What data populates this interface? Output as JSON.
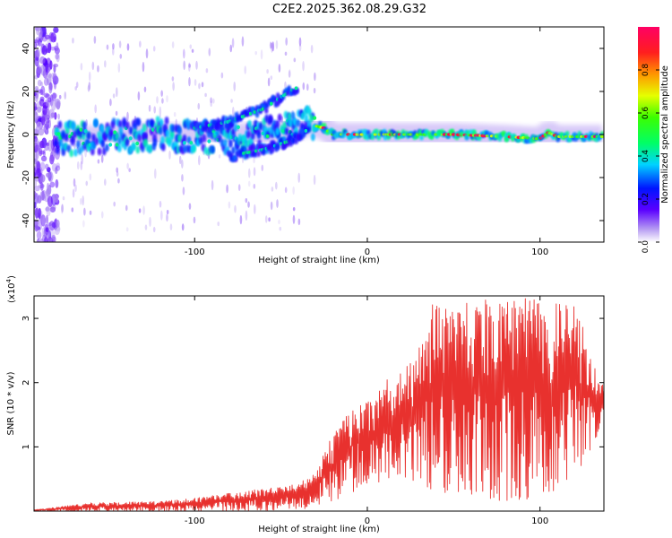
{
  "title": "C2E2.2025.362.08.29.G32",
  "colors": {
    "snr_line": "#e8312e",
    "axis": "#000000"
  },
  "chart_data": [
    {
      "type": "heatmap",
      "name": "spectrogram",
      "xlabel": "Height of straight line (km)",
      "ylabel": "Frequency (Hz)",
      "xlim": [
        -193,
        137
      ],
      "ylim": [
        -50,
        50
      ],
      "xticks": [
        -100,
        0,
        100
      ],
      "xtick_labels": [
        "-100",
        "0",
        "100"
      ],
      "yticks": [
        -40,
        -20,
        0,
        20,
        40
      ],
      "ytick_labels": [
        "-40",
        "-20",
        "0",
        "20",
        "40"
      ],
      "main_band_frequency_hz": [
        [
          -180,
          -2
        ],
        [
          -150,
          -1
        ],
        [
          -120,
          0
        ],
        [
          -100,
          -1
        ],
        [
          -80,
          -1
        ],
        [
          -60,
          1
        ],
        [
          -40,
          3
        ],
        [
          -35,
          5
        ],
        [
          -25,
          3
        ],
        [
          -20,
          0
        ],
        [
          0,
          0
        ],
        [
          20,
          0
        ],
        [
          50,
          0
        ],
        [
          80,
          -1
        ],
        [
          100,
          -2
        ],
        [
          105,
          1
        ],
        [
          110,
          -1
        ],
        [
          137,
          -1
        ]
      ],
      "upper_branch_frequency_hz": [
        [
          -100,
          3
        ],
        [
          -80,
          6
        ],
        [
          -60,
          12
        ],
        [
          -45,
          20
        ],
        [
          -40,
          22
        ]
      ],
      "lower_branch_frequency_hz": [
        [
          -80,
          -10
        ],
        [
          -60,
          -7
        ],
        [
          -45,
          -3
        ],
        [
          -35,
          2
        ]
      ],
      "colorbar": {
        "label": "Normalized spectral amplitude",
        "range": [
          0,
          1
        ],
        "ticks": [
          0,
          0.2,
          0.4,
          0.6,
          0.8
        ],
        "tick_labels": [
          "0.0",
          "0.2",
          "0.4",
          "0.6",
          "0.8"
        ]
      }
    },
    {
      "type": "line",
      "name": "snr",
      "xlabel": "Height of straight line (km)",
      "ylabel": "SNR (10 * v/v)",
      "scale_label": "(x10",
      "scale_exponent": "4",
      "scale_suffix": ")",
      "xlim": [
        -193,
        137
      ],
      "ylim": [
        0,
        3.35
      ],
      "xticks": [
        -100,
        0,
        100
      ],
      "xtick_labels": [
        "-100",
        "0",
        "100"
      ],
      "yticks": [
        1,
        2,
        3
      ],
      "ytick_labels": [
        "1",
        "2",
        "3"
      ],
      "envelope_max": [
        [
          -193,
          0.02
        ],
        [
          -160,
          0.13
        ],
        [
          -120,
          0.15
        ],
        [
          -100,
          0.2
        ],
        [
          -80,
          0.28
        ],
        [
          -60,
          0.35
        ],
        [
          -40,
          0.42
        ],
        [
          -30,
          0.65
        ],
        [
          -20,
          1.2
        ],
        [
          -10,
          1.6
        ],
        [
          0,
          1.75
        ],
        [
          10,
          2.05
        ],
        [
          20,
          2.15
        ],
        [
          30,
          2.55
        ],
        [
          38,
          3.25
        ],
        [
          50,
          3.15
        ],
        [
          60,
          3.35
        ],
        [
          80,
          3.3
        ],
        [
          100,
          3.35
        ],
        [
          110,
          3.35
        ],
        [
          120,
          3.3
        ],
        [
          130,
          2.4
        ],
        [
          137,
          1.95
        ]
      ],
      "envelope_min": [
        [
          -193,
          0.0
        ],
        [
          -100,
          0.0
        ],
        [
          -40,
          0.02
        ],
        [
          -30,
          0.05
        ],
        [
          -20,
          0.15
        ],
        [
          0,
          0.4
        ],
        [
          20,
          0.55
        ],
        [
          40,
          0.3
        ],
        [
          60,
          0.25
        ],
        [
          80,
          0.15
        ],
        [
          100,
          0.2
        ],
        [
          120,
          0.5
        ],
        [
          130,
          1.0
        ],
        [
          137,
          1.4
        ]
      ]
    }
  ]
}
